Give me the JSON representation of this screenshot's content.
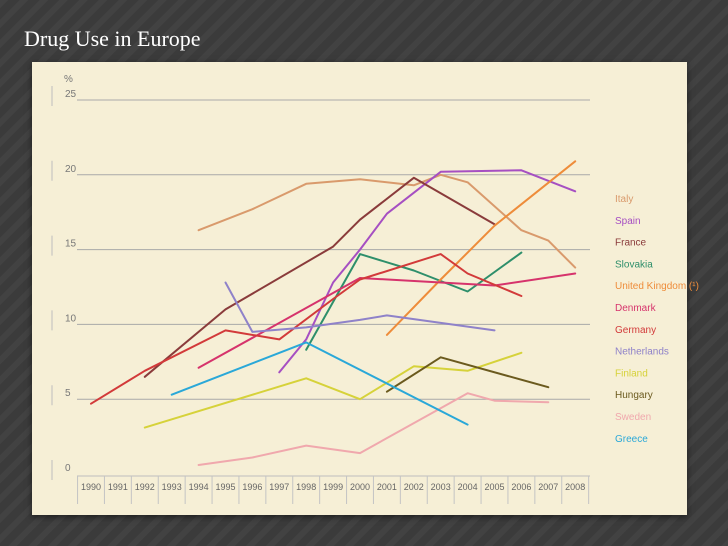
{
  "slide": {
    "title": "Drug Use in Europe"
  },
  "chart_data": {
    "type": "line",
    "title": "",
    "ylabel": "%",
    "xlabel": "",
    "ylim": [
      0,
      25
    ],
    "yticks": [
      "0",
      "5",
      "10",
      "15",
      "20",
      "25"
    ],
    "x": [
      "1990",
      "1991",
      "1992",
      "1993",
      "1994",
      "1995",
      "1996",
      "1997",
      "1998",
      "1999",
      "2000",
      "2001",
      "2002",
      "2003",
      "2004",
      "2005",
      "2006",
      "2007",
      "2008"
    ],
    "series": [
      {
        "name": "Italy",
        "color": "#d99a6c",
        "points": [
          [
            "1994",
            16.3
          ],
          [
            "1996",
            17.7
          ],
          [
            "1998",
            19.4
          ],
          [
            "2000",
            19.7
          ],
          [
            "2002",
            19.3
          ],
          [
            "2003",
            20.0
          ],
          [
            "2004",
            19.5
          ],
          [
            "2006",
            16.3
          ],
          [
            "2007",
            15.6
          ],
          [
            "2008",
            13.8
          ]
        ]
      },
      {
        "name": "Spain",
        "color": "#a64fc2",
        "points": [
          [
            "1997",
            6.8
          ],
          [
            "1998",
            9.0
          ],
          [
            "1999",
            12.8
          ],
          [
            "2000",
            15.0
          ],
          [
            "2001",
            17.4
          ],
          [
            "2003",
            20.2
          ],
          [
            "2006",
            20.3
          ],
          [
            "2008",
            18.9
          ]
        ]
      },
      {
        "name": "France",
        "color": "#8a3b3b",
        "points": [
          [
            "1992",
            6.5
          ],
          [
            "1995",
            11.0
          ],
          [
            "1999",
            15.2
          ],
          [
            "2000",
            17.0
          ],
          [
            "2002",
            19.8
          ],
          [
            "2005",
            16.7
          ]
        ]
      },
      {
        "name": "Slovakia",
        "color": "#2e8f6b",
        "points": [
          [
            "1998",
            8.3
          ],
          [
            "2000",
            14.7
          ],
          [
            "2002",
            13.6
          ],
          [
            "2004",
            12.2
          ],
          [
            "2006",
            14.8
          ]
        ]
      },
      {
        "name": "United Kingdom (¹)",
        "color": "#ee8c3a",
        "points": [
          [
            "2001",
            9.3
          ],
          [
            "2003",
            13.0
          ],
          [
            "2005",
            16.6
          ],
          [
            "2008",
            20.9
          ]
        ]
      },
      {
        "name": "Denmark",
        "color": "#d6336c",
        "points": [
          [
            "1994",
            7.1
          ],
          [
            "2000",
            13.1
          ],
          [
            "2003",
            12.8
          ],
          [
            "2005",
            12.6
          ],
          [
            "2008",
            13.4
          ]
        ]
      },
      {
        "name": "Germany",
        "color": "#d23a3a",
        "points": [
          [
            "1990",
            4.7
          ],
          [
            "1992",
            6.9
          ],
          [
            "1995",
            9.6
          ],
          [
            "1997",
            9.0
          ],
          [
            "1999",
            11.7
          ],
          [
            "2000",
            13.0
          ],
          [
            "2003",
            14.7
          ],
          [
            "2004",
            13.4
          ],
          [
            "2006",
            11.9
          ]
        ]
      },
      {
        "name": "Netherlands",
        "color": "#8f82c9",
        "points": [
          [
            "1995",
            12.8
          ],
          [
            "1996",
            9.5
          ],
          [
            "1998",
            9.8
          ],
          [
            "2000",
            10.3
          ],
          [
            "2001",
            10.6
          ],
          [
            "2005",
            9.6
          ]
        ]
      },
      {
        "name": "Finland",
        "color": "#d6d23a",
        "points": [
          [
            "1992",
            3.1
          ],
          [
            "1998",
            6.4
          ],
          [
            "2000",
            5.0
          ],
          [
            "2002",
            7.2
          ],
          [
            "2004",
            6.9
          ],
          [
            "2006",
            8.1
          ]
        ]
      },
      {
        "name": "Hungary",
        "color": "#6b5a1e",
        "points": [
          [
            "2001",
            5.5
          ],
          [
            "2003",
            7.8
          ],
          [
            "2007",
            5.8
          ]
        ]
      },
      {
        "name": "Sweden",
        "color": "#f0a8ad",
        "points": [
          [
            "1994",
            0.6
          ],
          [
            "1996",
            1.1
          ],
          [
            "1998",
            1.9
          ],
          [
            "2000",
            1.4
          ],
          [
            "2004",
            5.4
          ],
          [
            "2005",
            4.9
          ],
          [
            "2007",
            4.8
          ]
        ]
      },
      {
        "name": "Greece",
        "color": "#2aa8d8",
        "points": [
          [
            "1993",
            5.3
          ],
          [
            "1998",
            8.8
          ],
          [
            "2004",
            3.3
          ]
        ]
      }
    ],
    "legend_position": "right",
    "grid": true
  }
}
